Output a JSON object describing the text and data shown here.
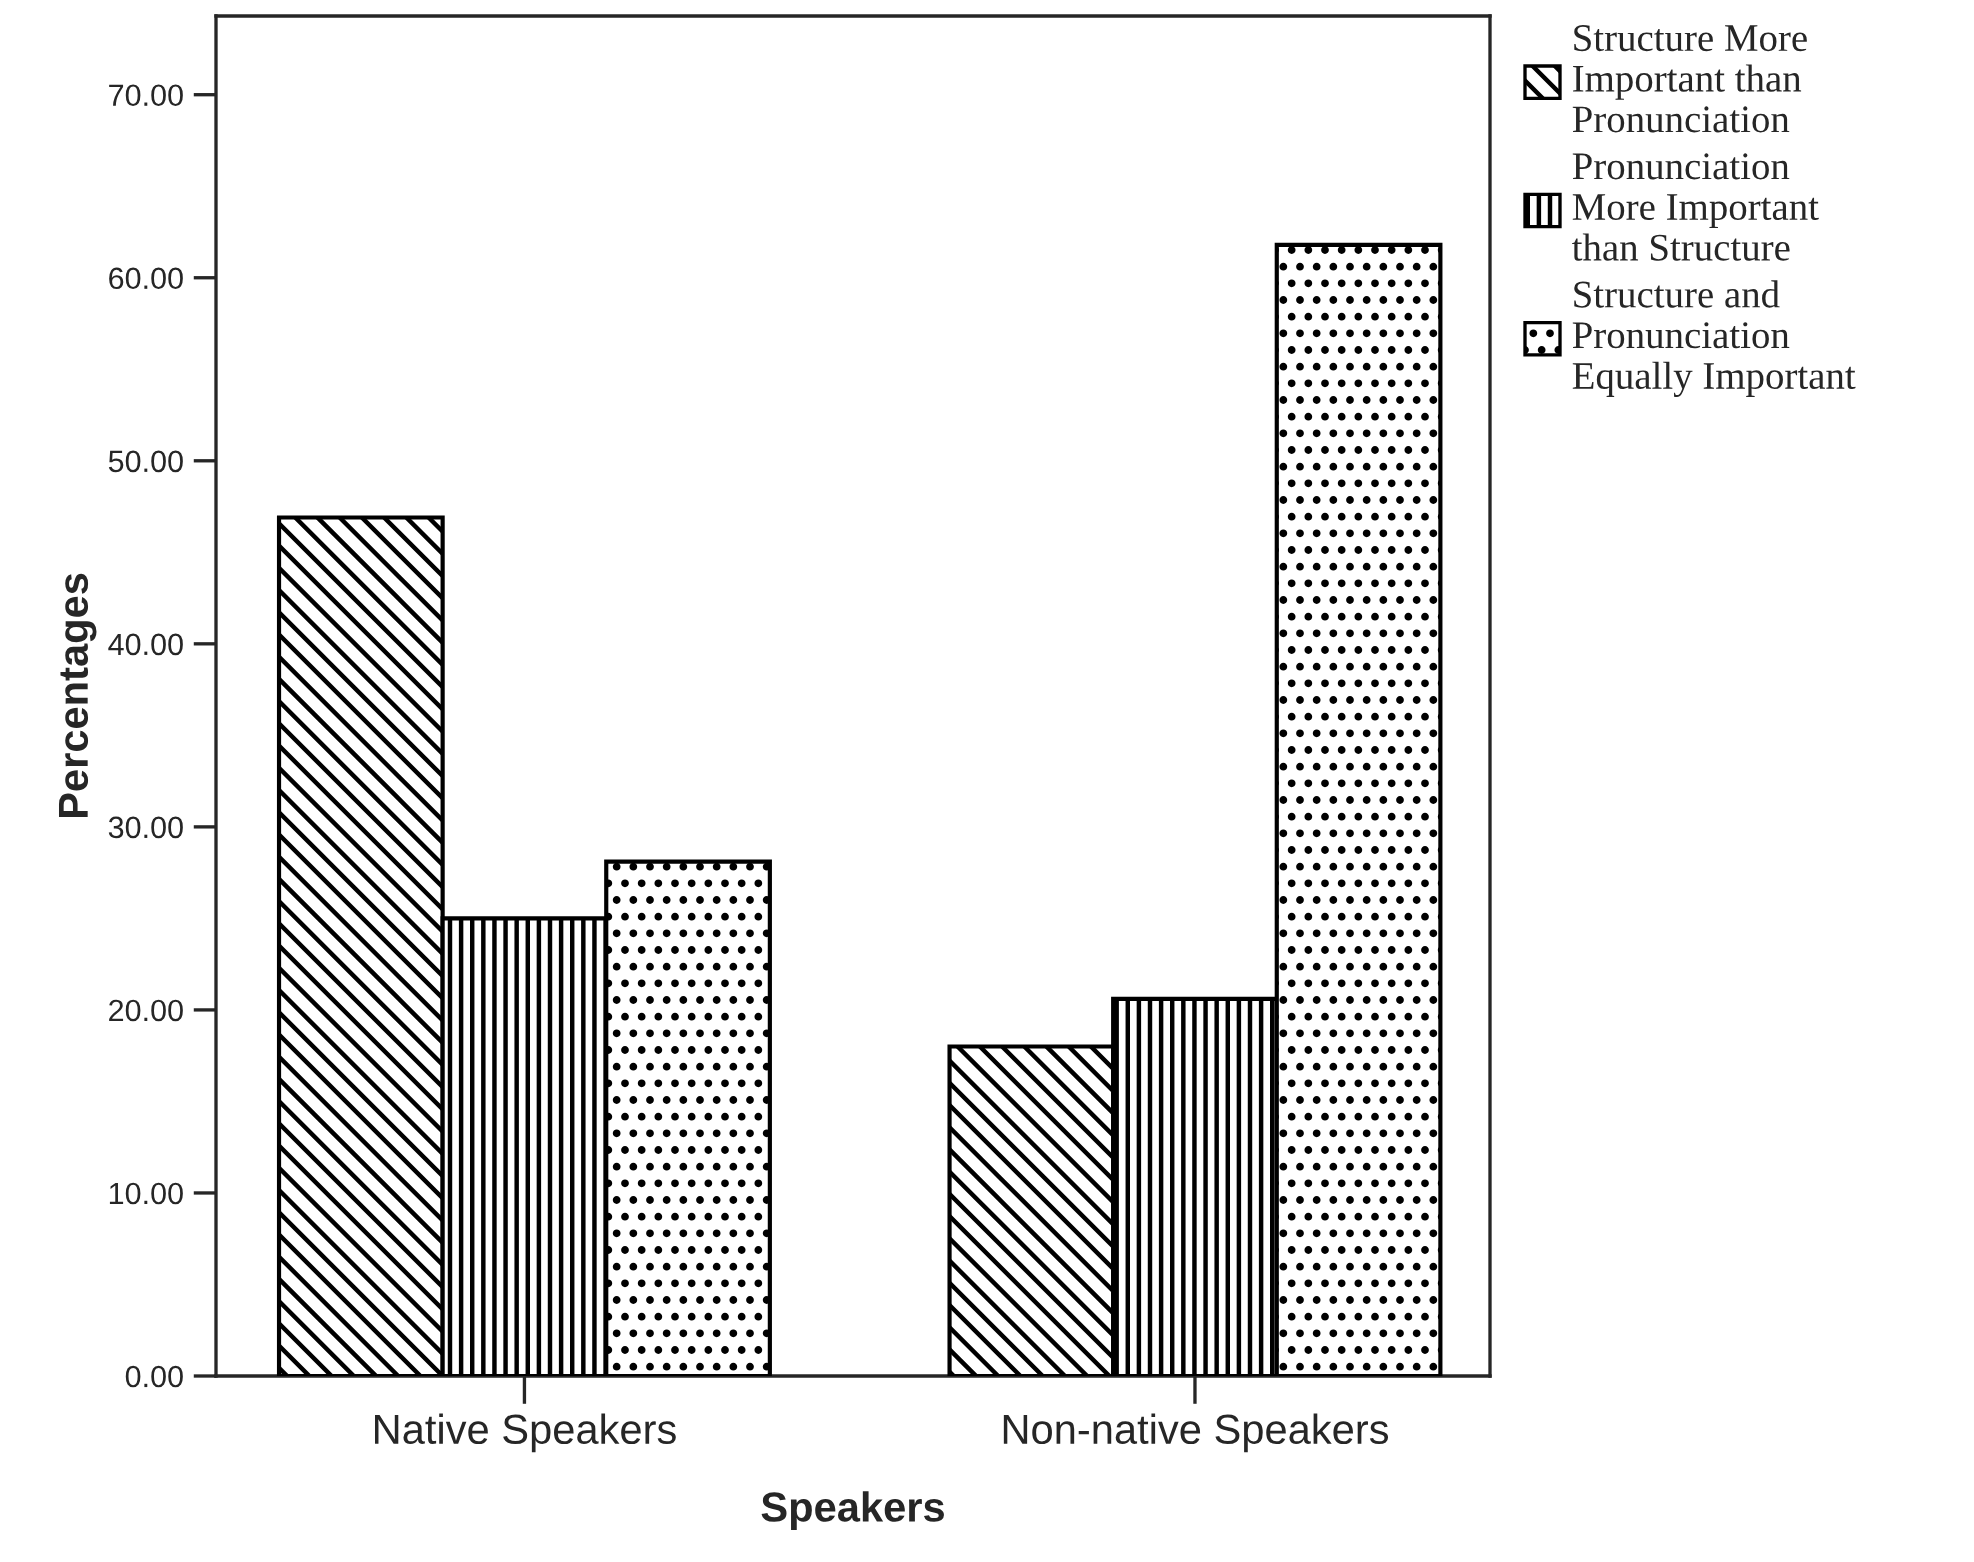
{
  "chart_data": {
    "type": "bar",
    "xlabel": "Speakers",
    "ylabel": "Percentages",
    "categories": [
      "Native Speakers",
      "Non-native Speakers"
    ],
    "series": [
      {
        "name": "Structure More\nImportant than\nPronunciation",
        "color": "#000000",
        "values": [
          46.9,
          18.0
        ]
      },
      {
        "name": "Pronunciation\nMore Important\nthan Structure",
        "color": "#000000",
        "values": [
          25.0,
          20.6
        ]
      },
      {
        "name": "Structure and\nPronunciation\nEqually Important",
        "color": "#000000",
        "values": [
          28.1,
          61.8
        ]
      }
    ],
    "ylim": [
      0,
      74.3
    ],
    "yticks": [
      {
        "value": 0,
        "label": "0.00"
      },
      {
        "value": 10,
        "label": "10.00"
      },
      {
        "value": 20,
        "label": "20.00"
      },
      {
        "value": 30,
        "label": "30.00"
      },
      {
        "value": 40,
        "label": "40.00"
      },
      {
        "value": 50,
        "label": "50.00"
      },
      {
        "value": 60,
        "label": "60.00"
      },
      {
        "value": 70,
        "label": "70.00"
      }
    ],
    "grid": false,
    "legend": "top right"
  }
}
